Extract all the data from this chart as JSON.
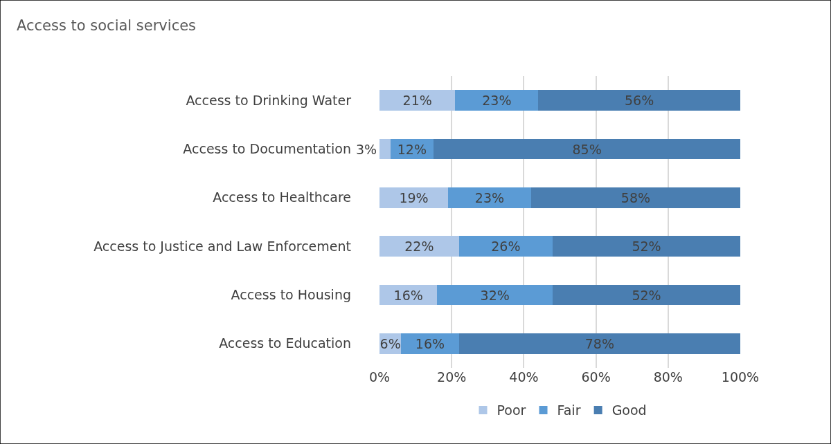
{
  "chart_data": {
    "type": "bar",
    "orientation": "horizontal",
    "stacked": true,
    "title": "Access to social services",
    "categories": [
      "Access to Drinking Water",
      "Access to Documentation",
      "Access to Healthcare",
      "Access to Justice and Law Enforcement",
      "Access to Housing",
      "Access to Education"
    ],
    "series": [
      {
        "name": "Poor",
        "color": "#aec7e8",
        "values": [
          21,
          3,
          19,
          22,
          16,
          6
        ],
        "value_labels": [
          "21%",
          "3%",
          "19%",
          "22%",
          "16%",
          "6%"
        ]
      },
      {
        "name": "Fair",
        "color": "#5b9bd5",
        "values": [
          23,
          12,
          23,
          26,
          32,
          16
        ],
        "value_labels": [
          "23%",
          "12%",
          "23%",
          "26%",
          "32%",
          "16%"
        ]
      },
      {
        "name": "Good",
        "color": "#4a7eb1",
        "values": [
          56,
          85,
          58,
          52,
          52,
          78
        ],
        "value_labels": [
          "56%",
          "85%",
          "58%",
          "52%",
          "52%",
          "78%"
        ]
      }
    ],
    "xlim": [
      0,
      100
    ],
    "xticks": [
      {
        "value": 0,
        "label": "0%"
      },
      {
        "value": 20,
        "label": "20%"
      },
      {
        "value": 40,
        "label": "40%"
      },
      {
        "value": 60,
        "label": "60%"
      },
      {
        "value": 80,
        "label": "80%"
      },
      {
        "value": 100,
        "label": "100%"
      }
    ],
    "grid": "x",
    "legend": "bottom"
  }
}
